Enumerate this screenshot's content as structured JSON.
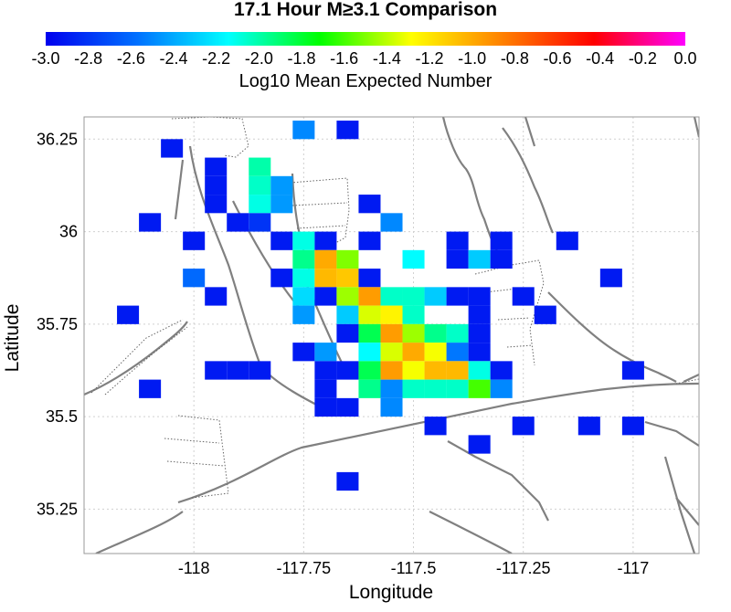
{
  "chart_data": {
    "type": "heatmap",
    "title": "17.1 Hour M≥3.1 Comparison",
    "xlabel": "Longitude",
    "ylabel": "Latitude",
    "xlim": [
      -118.25,
      -116.85
    ],
    "ylim": [
      35.13,
      36.31
    ],
    "x_ticks": [
      -118,
      -117.75,
      -117.5,
      -117.25,
      -117
    ],
    "x_tick_labels": [
      "-118",
      "-117.75",
      "-117.5",
      "-117.25",
      "-117"
    ],
    "y_ticks": [
      35.25,
      35.5,
      35.75,
      36,
      36.25
    ],
    "y_tick_labels": [
      "35.25",
      "35.5",
      "35.75",
      "36",
      "36.25"
    ],
    "grid": true,
    "cell_size": 0.05,
    "colorbar": {
      "label": "Log10 Mean Expected Number",
      "range": [
        -3.0,
        0.0
      ],
      "ticks": [
        -3.0,
        -2.8,
        -2.6,
        -2.4,
        -2.2,
        -2.0,
        -1.8,
        -1.6,
        -1.4,
        -1.2,
        -1.0,
        -0.8,
        -0.6,
        -0.4,
        -0.2,
        0.0
      ],
      "tick_labels": [
        "-3.0",
        "-2.8",
        "-2.6",
        "-2.4",
        "-2.2",
        "-2.0",
        "-1.8",
        "-1.6",
        "-1.4",
        "-1.2",
        "-1.0",
        "-0.8",
        "-0.6",
        "-0.4",
        "-0.2",
        "0.0"
      ],
      "colors": [
        "#0000ee",
        "#0070ff",
        "#00ffff",
        "#00ff00",
        "#ffff00",
        "#ff8000",
        "#ff0000",
        "#ff00ff"
      ]
    },
    "cells": [
      [
        -117.75,
        36.275,
        -2.5
      ],
      [
        -117.65,
        36.275,
        -2.9
      ],
      [
        -118.05,
        36.225,
        -2.9
      ],
      [
        -117.95,
        36.175,
        -2.9
      ],
      [
        -117.85,
        36.175,
        -2.0
      ],
      [
        -117.95,
        36.125,
        -2.9
      ],
      [
        -117.85,
        36.125,
        -2.05
      ],
      [
        -117.8,
        36.125,
        -2.45
      ],
      [
        -117.95,
        36.075,
        -2.9
      ],
      [
        -117.85,
        36.075,
        -2.1
      ],
      [
        -117.8,
        36.075,
        -2.45
      ],
      [
        -117.6,
        36.075,
        -2.9
      ],
      [
        -118.1,
        36.025,
        -2.9
      ],
      [
        -117.9,
        36.025,
        -2.9
      ],
      [
        -117.85,
        36.025,
        -2.8
      ],
      [
        -117.55,
        36.025,
        -2.5
      ],
      [
        -118.0,
        35.975,
        -2.9
      ],
      [
        -117.8,
        35.975,
        -2.9
      ],
      [
        -117.75,
        35.975,
        -2.1
      ],
      [
        -117.7,
        35.975,
        -2.9
      ],
      [
        -117.6,
        35.975,
        -2.9
      ],
      [
        -117.4,
        35.975,
        -2.9
      ],
      [
        -117.3,
        35.975,
        -2.9
      ],
      [
        -117.15,
        35.975,
        -2.9
      ],
      [
        -117.75,
        35.925,
        -1.95
      ],
      [
        -117.7,
        35.925,
        -1.0
      ],
      [
        -117.65,
        35.925,
        -1.5
      ],
      [
        -117.5,
        35.925,
        -2.15
      ],
      [
        -117.4,
        35.925,
        -2.9
      ],
      [
        -117.35,
        35.925,
        -2.3
      ],
      [
        -117.3,
        35.925,
        -2.9
      ],
      [
        -118.0,
        35.875,
        -2.6
      ],
      [
        -117.8,
        35.875,
        -2.9
      ],
      [
        -117.75,
        35.875,
        -2.1
      ],
      [
        -117.7,
        35.875,
        -1.05
      ],
      [
        -117.65,
        35.875,
        -1.1
      ],
      [
        -117.6,
        35.875,
        -2.9
      ],
      [
        -117.05,
        35.875,
        -2.9
      ],
      [
        -117.95,
        35.825,
        -2.9
      ],
      [
        -117.75,
        35.825,
        -2.25
      ],
      [
        -117.7,
        35.825,
        -2.9
      ],
      [
        -117.65,
        35.825,
        -1.45
      ],
      [
        -117.6,
        35.825,
        -0.95
      ],
      [
        -117.55,
        35.825,
        -2.05
      ],
      [
        -117.5,
        35.825,
        -2.05
      ],
      [
        -117.45,
        35.825,
        -2.3
      ],
      [
        -117.4,
        35.825,
        -2.9
      ],
      [
        -117.35,
        35.825,
        -2.9
      ],
      [
        -117.25,
        35.825,
        -2.9
      ],
      [
        -118.15,
        35.775,
        -2.9
      ],
      [
        -117.75,
        35.775,
        -2.45
      ],
      [
        -117.65,
        35.775,
        -2.3
      ],
      [
        -117.6,
        35.775,
        -1.35
      ],
      [
        -117.55,
        35.775,
        -1.25
      ],
      [
        -117.5,
        35.775,
        -2.05
      ],
      [
        -117.35,
        35.775,
        -2.9
      ],
      [
        -117.2,
        35.775,
        -2.9
      ],
      [
        -117.65,
        35.725,
        -2.9
      ],
      [
        -117.6,
        35.725,
        -1.85
      ],
      [
        -117.55,
        35.725,
        -0.95
      ],
      [
        -117.5,
        35.725,
        -1.45
      ],
      [
        -117.45,
        35.725,
        -1.95
      ],
      [
        -117.4,
        35.725,
        -2.05
      ],
      [
        -117.35,
        35.725,
        -2.9
      ],
      [
        -117.75,
        35.675,
        -2.9
      ],
      [
        -117.7,
        35.675,
        -2.45
      ],
      [
        -117.6,
        35.675,
        -2.15
      ],
      [
        -117.55,
        35.675,
        -1.35
      ],
      [
        -117.5,
        35.675,
        -1.0
      ],
      [
        -117.45,
        35.675,
        -1.3
      ],
      [
        -117.4,
        35.675,
        -2.55
      ],
      [
        -117.35,
        35.675,
        -2.9
      ],
      [
        -117.95,
        35.625,
        -2.9
      ],
      [
        -117.9,
        35.625,
        -2.9
      ],
      [
        -117.85,
        35.625,
        -2.9
      ],
      [
        -117.7,
        35.625,
        -2.9
      ],
      [
        -117.65,
        35.625,
        -2.9
      ],
      [
        -117.6,
        35.625,
        -1.85
      ],
      [
        -117.55,
        35.625,
        -0.95
      ],
      [
        -117.5,
        35.625,
        -1.3
      ],
      [
        -117.45,
        35.625,
        -1.05
      ],
      [
        -117.4,
        35.625,
        -1.05
      ],
      [
        -117.35,
        35.625,
        -2.1
      ],
      [
        -117.3,
        35.625,
        -2.9
      ],
      [
        -117.0,
        35.625,
        -2.9
      ],
      [
        -118.1,
        35.575,
        -2.9
      ],
      [
        -117.7,
        35.575,
        -2.9
      ],
      [
        -117.6,
        35.575,
        -1.95
      ],
      [
        -117.55,
        35.575,
        -2.5
      ],
      [
        -117.5,
        35.575,
        -2.05
      ],
      [
        -117.45,
        35.575,
        -2.05
      ],
      [
        -117.4,
        35.575,
        -2.05
      ],
      [
        -117.35,
        35.575,
        -1.6
      ],
      [
        -117.3,
        35.575,
        -2.5
      ],
      [
        -117.7,
        35.525,
        -2.9
      ],
      [
        -117.65,
        35.525,
        -2.9
      ],
      [
        -117.55,
        35.525,
        -2.5
      ],
      [
        -117.45,
        35.475,
        -2.9
      ],
      [
        -117.25,
        35.475,
        -2.9
      ],
      [
        -117.1,
        35.475,
        -2.9
      ],
      [
        -117.0,
        35.475,
        -2.9
      ],
      [
        -117.35,
        35.425,
        -2.9
      ],
      [
        -117.65,
        35.325,
        -2.9
      ]
    ]
  }
}
